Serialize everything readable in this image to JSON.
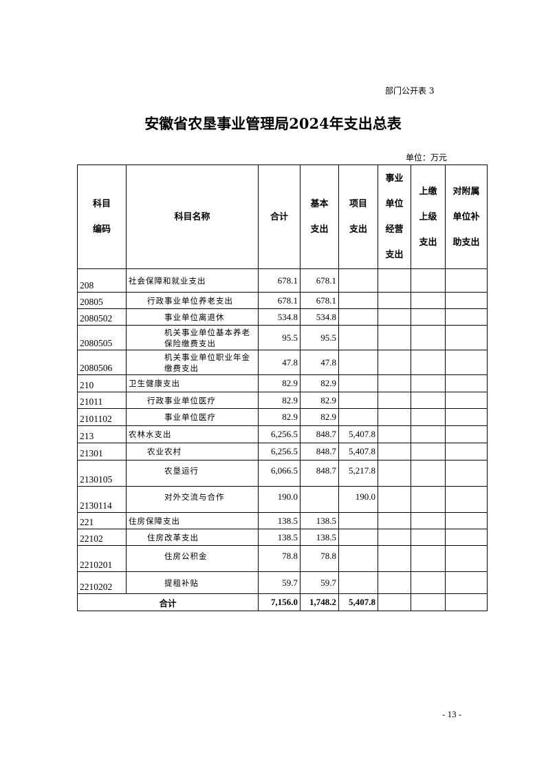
{
  "doc_tag": "部门公开表 3",
  "title": "安徽省农垦事业管理局2024年支出总表",
  "unit": "单位：万元",
  "headers": [
    "科目\n编码",
    "科目名称",
    "合计",
    "基本\n支出",
    "项目\n支出",
    "事业\n单位\n经营\n支出",
    "上缴\n上级\n支出",
    "对附属\n单位补\n助支出"
  ],
  "rows": [
    {
      "code": "208",
      "name": "社会保障和就业支出",
      "level": 1,
      "total": "678.1",
      "basic": "678.1",
      "project": ""
    },
    {
      "code": "20805",
      "name": "行政事业单位养老支出",
      "level": 2,
      "total": "678.1",
      "basic": "678.1",
      "project": ""
    },
    {
      "code": "2080502",
      "name": "事业单位离退休",
      "level": 3,
      "total": "534.8",
      "basic": "534.8",
      "project": ""
    },
    {
      "code": "2080505",
      "name": "机关事业单位基本养老保险缴费支出",
      "level": 3,
      "total": "95.5",
      "basic": "95.5",
      "project": ""
    },
    {
      "code": "2080506",
      "name": "机关事业单位职业年金缴费支出",
      "level": 3,
      "total": "47.8",
      "basic": "47.8",
      "project": ""
    },
    {
      "code": "210",
      "name": "卫生健康支出",
      "level": 1,
      "total": "82.9",
      "basic": "82.9",
      "project": ""
    },
    {
      "code": "21011",
      "name": "行政事业单位医疗",
      "level": 2,
      "total": "82.9",
      "basic": "82.9",
      "project": ""
    },
    {
      "code": "2101102",
      "name": "事业单位医疗",
      "level": 3,
      "total": "82.9",
      "basic": "82.9",
      "project": ""
    },
    {
      "code": "213",
      "name": "农林水支出",
      "level": 1,
      "total": "6,256.5",
      "basic": "848.7",
      "project": "5,407.8"
    },
    {
      "code": "21301",
      "name": "农业农村",
      "level": 2,
      "total": "6,256.5",
      "basic": "848.7",
      "project": "5,407.8"
    },
    {
      "code": "2130105",
      "name": "农垦运行",
      "level": 3,
      "total": "6,066.5",
      "basic": "848.7",
      "project": "5,217.8"
    },
    {
      "code": "2130114",
      "name": "对外交流与合作",
      "level": 3,
      "total": "190.0",
      "basic": "",
      "project": "190.0"
    },
    {
      "code": "221",
      "name": "住房保障支出",
      "level": 1,
      "total": "138.5",
      "basic": "138.5",
      "project": ""
    },
    {
      "code": "22102",
      "name": "住房改革支出",
      "level": 2,
      "total": "138.5",
      "basic": "138.5",
      "project": ""
    },
    {
      "code": "2210201",
      "name": "住房公积金",
      "level": 3,
      "total": "78.8",
      "basic": "78.8",
      "project": ""
    },
    {
      "code": "2210202",
      "name": "提租补贴",
      "level": 3,
      "total": "59.7",
      "basic": "59.7",
      "project": ""
    }
  ],
  "total_row": {
    "label": "合计",
    "total": "7,156.0",
    "basic": "1,748.2",
    "project": "5,407.8"
  },
  "page_number": "- 13 -"
}
